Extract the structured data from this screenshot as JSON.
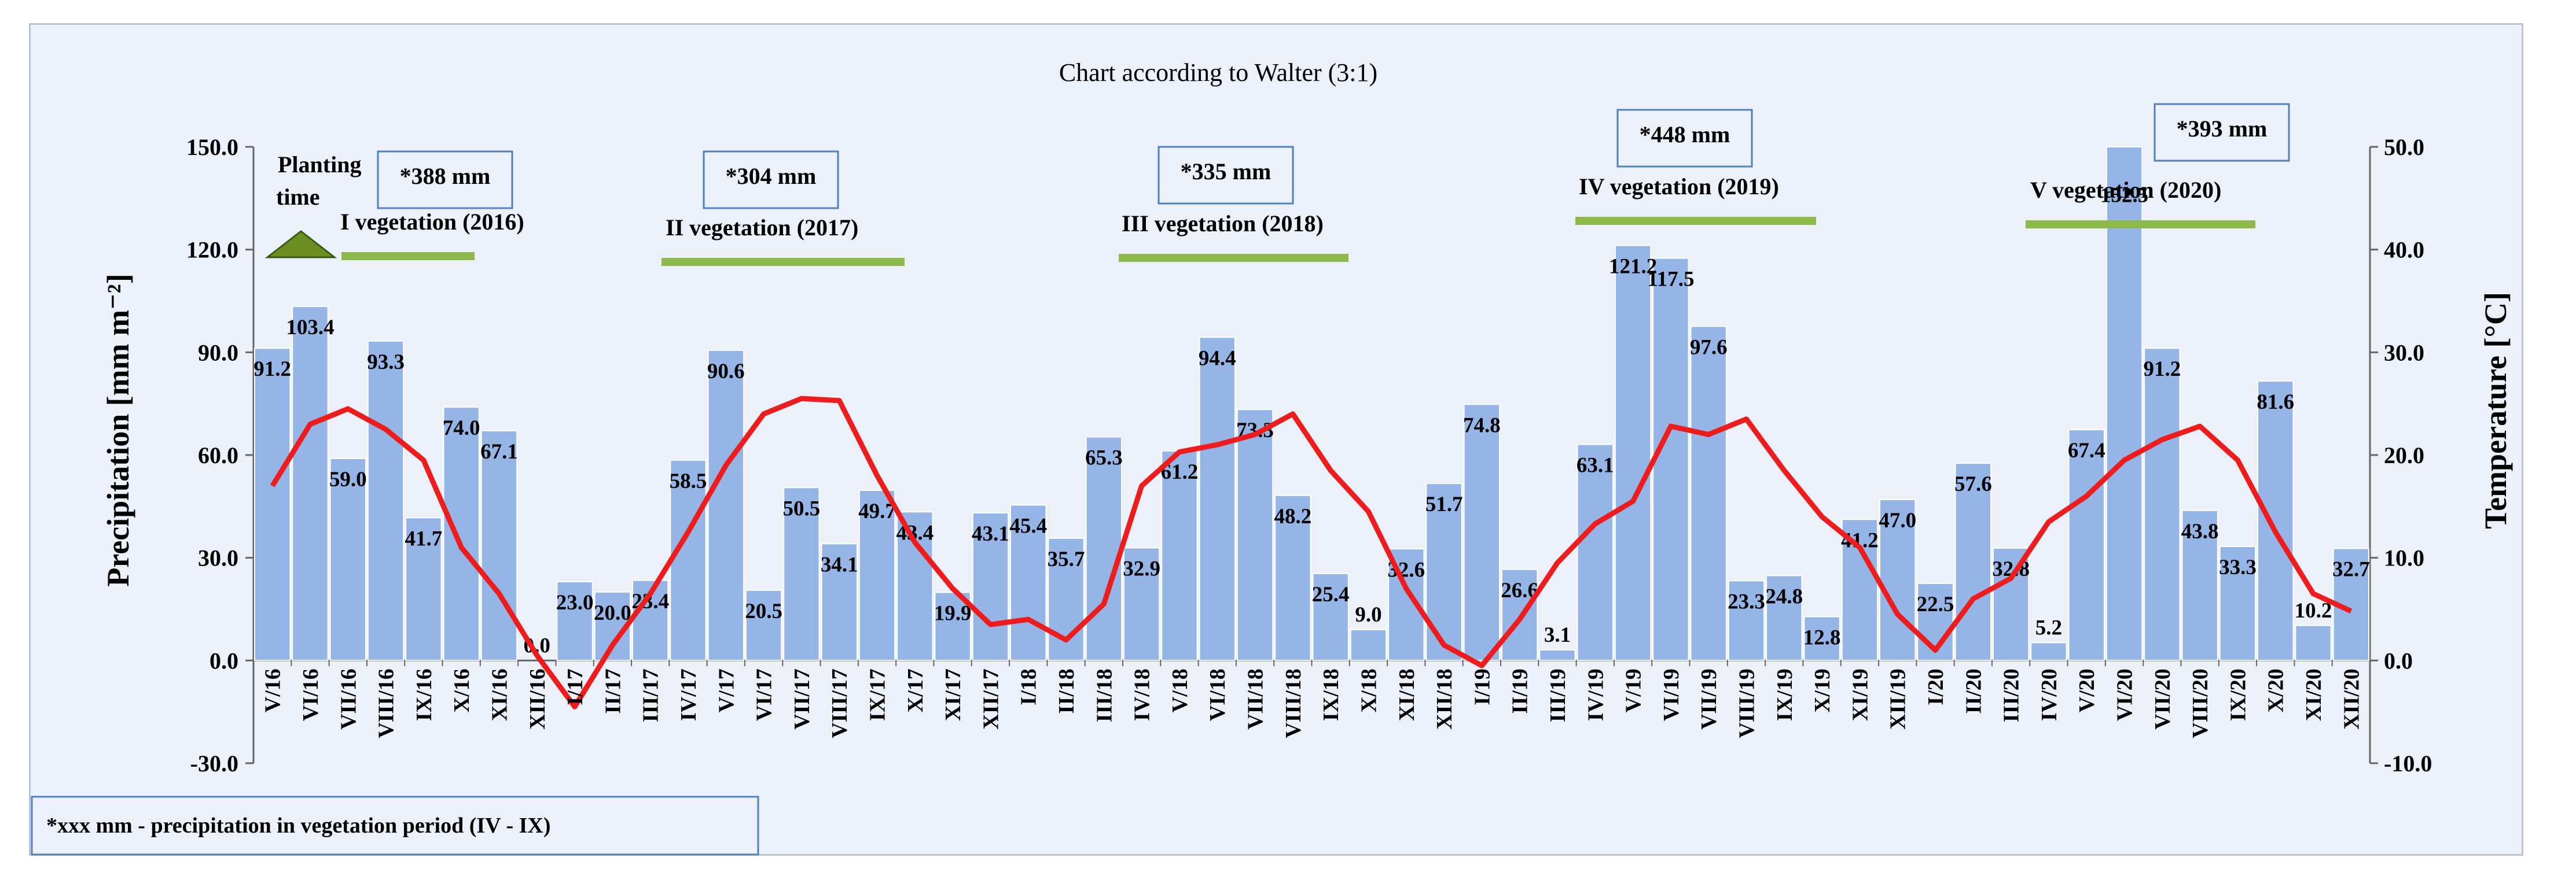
{
  "chart_data": {
    "type": "bar+line",
    "title": "Chart according to Walter (3:1)",
    "ylabel": "Precipitation [mm m⁻²]",
    "y2label": "Temperature  [°C]",
    "ylim": [
      -30,
      150
    ],
    "y2lim": [
      -10,
      50
    ],
    "yticks": [
      -30,
      0,
      30,
      60,
      90,
      120,
      150
    ],
    "yticks_labels": [
      "-30.0",
      "0.0",
      "30.0",
      "60.0",
      "90.0",
      "120.0",
      "150.0"
    ],
    "y2ticks": [
      -10,
      0,
      10,
      20,
      30,
      40,
      50
    ],
    "y2ticks_labels": [
      "-10.0",
      "0.0",
      "10.0",
      "20.0",
      "30.0",
      "40.0",
      "50.0"
    ],
    "categories": [
      "V/16",
      "VI/16",
      "VII/16",
      "VIII/16",
      "IX/16",
      "X/16",
      "XI/16",
      "XII/16",
      "I/17",
      "II/17",
      "III/17",
      "IV/17",
      "V/17",
      "VI/17",
      "VII/17",
      "VIII/17",
      "IX/17",
      "X/17",
      "XI/17",
      "XII/17",
      "I/18",
      "II/18",
      "III/18",
      "IV/18",
      "V/18",
      "VI/18",
      "VII/18",
      "VIII/18",
      "IX/18",
      "X/18",
      "XI/18",
      "XII/18",
      "I/19",
      "II/19",
      "III/19",
      "IV/19",
      "V/19",
      "VI/19",
      "VII/19",
      "VIII/19",
      "IX/19",
      "X/19",
      "XI/19",
      "XII/19",
      "I/20",
      "II/20",
      "III/20",
      "IV/20",
      "V/20",
      "VI/20",
      "VII/20",
      "VIII/20",
      "IX/20",
      "X/20",
      "XI/20",
      "XII/20"
    ],
    "series": [
      {
        "name": "Precipitation",
        "type": "bar",
        "color": "#94b5e6",
        "values": [
          91.2,
          103.4,
          59.0,
          93.3,
          41.7,
          74.0,
          67.1,
          0.0,
          23.0,
          20.0,
          23.4,
          58.5,
          90.6,
          20.5,
          50.5,
          34.1,
          49.7,
          43.4,
          19.9,
          43.1,
          45.4,
          35.7,
          65.3,
          32.9,
          61.2,
          94.4,
          73.3,
          48.2,
          25.4,
          9.0,
          32.6,
          51.7,
          74.8,
          26.6,
          3.1,
          63.1,
          121.2,
          117.5,
          97.6,
          23.3,
          24.8,
          12.8,
          41.2,
          47.0,
          22.5,
          57.6,
          32.8,
          5.2,
          67.4,
          152.5,
          91.2,
          43.8,
          33.3,
          81.6,
          10.2,
          32.7
        ],
        "labels": [
          "91.2",
          "103.4",
          "59.0",
          "93.3",
          "41.7",
          "74.0",
          "67.1",
          "0.0",
          "23.0",
          "20.0",
          "23.4",
          "58.5",
          "90.6",
          "20.5",
          "50.5",
          "34.1",
          "49.7",
          "43.4",
          "19.9",
          "43.1",
          "45.4",
          "35.7",
          "65.3",
          "32.9",
          "61.2",
          "94.4",
          "73.3",
          "48.2",
          "25.4",
          "9.0",
          "32.6",
          "51.7",
          "74.8",
          "26.6",
          "3.1",
          "63.1",
          "121.2",
          "117.5",
          "97.6",
          "23.3",
          "24.8",
          "12.8",
          "41.2",
          "47.0",
          "22.5",
          "57.6",
          "32.8",
          "5.2",
          "67.4",
          "152.5",
          "91.2",
          "43.8",
          "33.3",
          "81.6",
          "10.2",
          "32.7"
        ]
      },
      {
        "name": "Temperature",
        "type": "line",
        "axis": "right",
        "color": "#ee1c1c",
        "values": [
          17.0,
          23.0,
          24.5,
          22.5,
          19.5,
          11.0,
          6.5,
          0.5,
          -4.5,
          1.5,
          6.5,
          12.5,
          19.0,
          24.0,
          25.5,
          25.3,
          18.0,
          11.5,
          7.0,
          3.5,
          4.0,
          2.0,
          5.5,
          17.0,
          20.3,
          21.0,
          22.0,
          24.0,
          18.5,
          14.5,
          7.0,
          1.5,
          -0.5,
          4.0,
          9.5,
          13.3,
          15.5,
          22.8,
          22.0,
          23.5,
          18.5,
          14.0,
          11.0,
          4.5,
          1.0,
          6.0,
          8.0,
          13.5,
          16.0,
          19.5,
          21.5,
          22.8,
          19.5,
          12.5,
          6.5,
          4.8
        ]
      }
    ],
    "annotations": {
      "vegetation_periods": [
        {
          "label": "I vegetation (2016)",
          "precip": "*388 mm"
        },
        {
          "label": "II vegetation (2017)",
          "precip": "*304 mm"
        },
        {
          "label": "III vegetation (2018)",
          "precip": "*335 mm"
        },
        {
          "label": "IV vegetation (2019)",
          "precip": "*448 mm"
        },
        {
          "label": "V vegetation (2020)",
          "precip": "*393 mm"
        }
      ],
      "planting": [
        "Planting",
        "time"
      ],
      "note": "*xxx mm - precipitation in vegetation period (IV - IX)"
    },
    "colors": {
      "bar": "#94b5e6",
      "line": "#ee1c1c",
      "vegetation_bar": "#8db84a",
      "planting_marker": "#6b8e23",
      "box_border": "#4f81bd",
      "background": "#ecf0f8"
    }
  }
}
